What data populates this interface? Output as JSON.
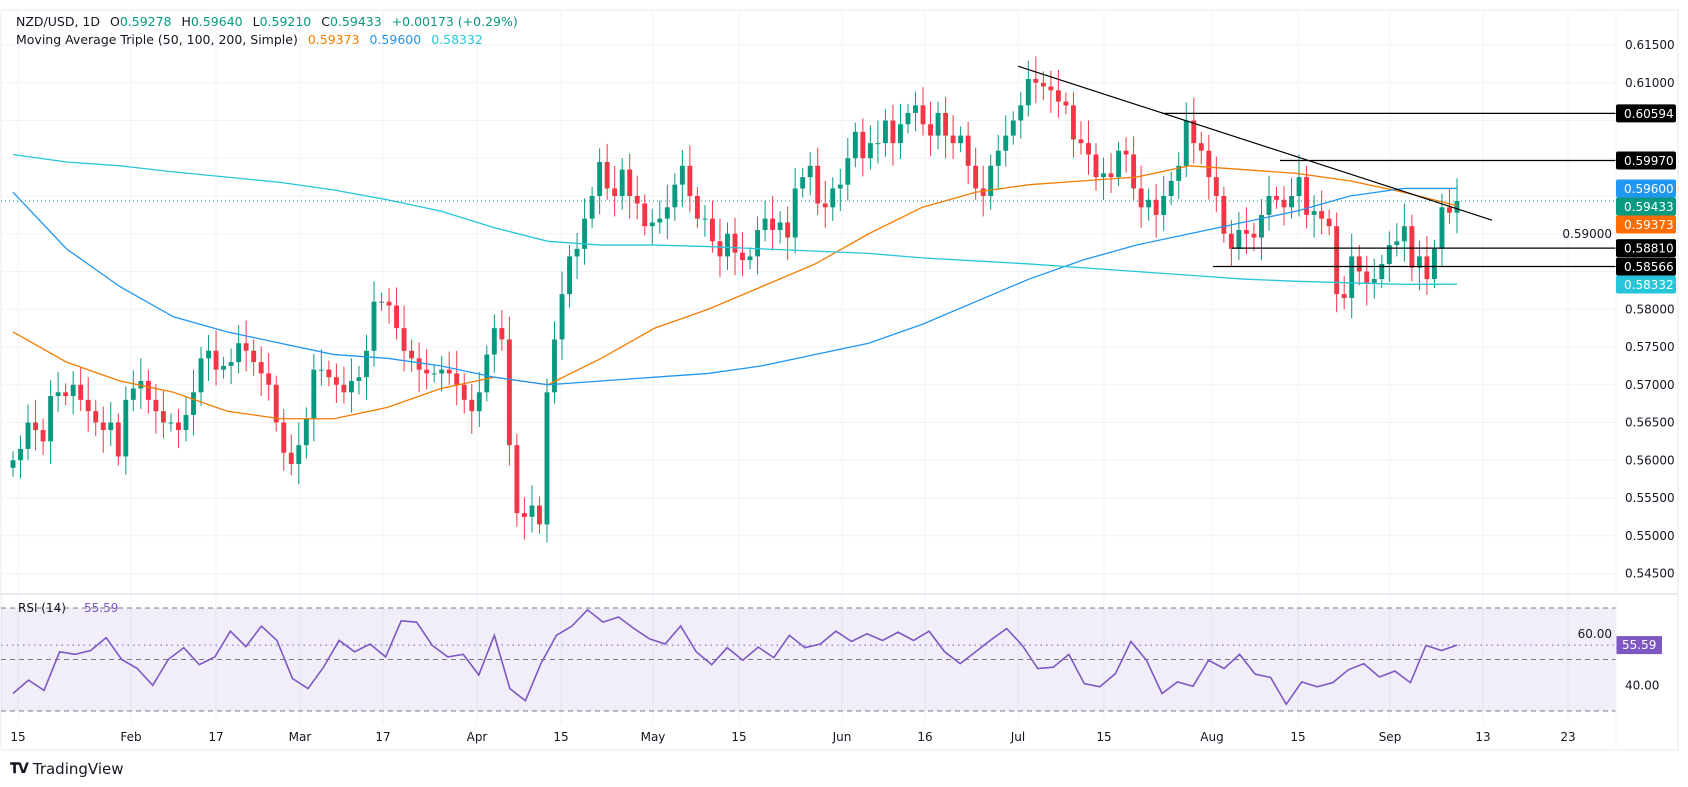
{
  "header": {
    "symbol": "NZD/USD, 1D",
    "open_label": "O",
    "open": "0.59278",
    "high_label": "H",
    "high": "0.59640",
    "low_label": "L",
    "low": "0.59210",
    "close_label": "C",
    "close": "0.59433",
    "change": "+0.00173 (+0.29%)",
    "ma_title": "Moving Average Triple (50, 100, 200, Simple)",
    "ma50": "0.59373",
    "ma100": "0.59600",
    "ma200": "0.58332"
  },
  "colors": {
    "up": "#089981",
    "down": "#F23645",
    "ma50": "#F57C00",
    "ma100": "#2196F3",
    "ma200": "#26C6DA",
    "rsi": "#7E57C2",
    "drawing": "#000000"
  },
  "chart_data": [
    {
      "type": "candlestick",
      "title": "NZD/USD, 1D",
      "ylim": [
        0.545,
        0.615
      ],
      "grid": true,
      "y_ticks": [
        "0.61500",
        "0.61000",
        "0.59000",
        "0.58000",
        "0.57500",
        "0.57000",
        "0.56500",
        "0.56000",
        "0.55500",
        "0.55000",
        "0.54500"
      ],
      "x_ticks": [
        "15",
        "Feb",
        "17",
        "Mar",
        "17",
        "Apr",
        "15",
        "May",
        "15",
        "Jun",
        "16",
        "Jul",
        "15",
        "Aug",
        "15",
        "Sep",
        "13",
        "23"
      ],
      "closes": [
        0.56,
        0.5615,
        0.565,
        0.564,
        0.5625,
        0.5685,
        0.569,
        0.5685,
        0.57,
        0.568,
        0.5665,
        0.565,
        0.564,
        0.565,
        0.5605,
        0.568,
        0.5695,
        0.5705,
        0.568,
        0.5665,
        0.565,
        0.565,
        0.564,
        0.566,
        0.569,
        0.5735,
        0.5745,
        0.572,
        0.5725,
        0.573,
        0.5755,
        0.5745,
        0.573,
        0.5715,
        0.57,
        0.565,
        0.561,
        0.5595,
        0.562,
        0.5655,
        0.572,
        0.572,
        0.571,
        0.57,
        0.569,
        0.5705,
        0.571,
        0.5745,
        0.581,
        0.581,
        0.5805,
        0.5775,
        0.5745,
        0.5735,
        0.572,
        0.5715,
        0.5715,
        0.572,
        0.5715,
        0.57,
        0.568,
        0.5665,
        0.569,
        0.574,
        0.5775,
        0.576,
        0.562,
        0.553,
        0.5525,
        0.554,
        0.5515,
        0.569,
        0.576,
        0.582,
        0.587,
        0.588,
        0.592,
        0.595,
        0.5995,
        0.596,
        0.595,
        0.5985,
        0.595,
        0.594,
        0.591,
        0.5915,
        0.592,
        0.5935,
        0.5965,
        0.599,
        0.595,
        0.592,
        0.592,
        0.589,
        0.587,
        0.59,
        0.5875,
        0.5865,
        0.587,
        0.5905,
        0.592,
        0.5905,
        0.5915,
        0.5895,
        0.596,
        0.5975,
        0.599,
        0.594,
        0.5935,
        0.596,
        0.5965,
        0.6,
        0.6035,
        0.6,
        0.602,
        0.602,
        0.605,
        0.602,
        0.6045,
        0.606,
        0.607,
        0.6045,
        0.603,
        0.606,
        0.603,
        0.602,
        0.603,
        0.599,
        0.596,
        0.595,
        0.599,
        0.601,
        0.603,
        0.605,
        0.607,
        0.6105,
        0.61,
        0.6095,
        0.609,
        0.6075,
        0.607,
        0.6025,
        0.602,
        0.6005,
        0.5975,
        0.598,
        0.5975,
        0.601,
        0.6005,
        0.596,
        0.5935,
        0.5945,
        0.5925,
        0.595,
        0.597,
        0.599,
        0.605,
        0.602,
        0.601,
        0.5975,
        0.595,
        0.59,
        0.588,
        0.5905,
        0.59,
        0.5895,
        0.5925,
        0.595,
        0.5945,
        0.5935,
        0.595,
        0.5975,
        0.5925,
        0.593,
        0.592,
        0.591,
        0.582,
        0.5815,
        0.587,
        0.585,
        0.5835,
        0.584,
        0.586,
        0.5885,
        0.589,
        0.591,
        0.5855,
        0.587,
        0.584,
        0.588,
        0.5935,
        0.59278,
        0.59433
      ],
      "moving_averages": [
        {
          "name": "MA 50",
          "values": [
            0.577,
            0.573,
            0.5705,
            0.569,
            0.5665,
            0.5655,
            0.5655,
            0.567,
            0.5695,
            0.571,
            0.57,
            0.5735,
            0.5775,
            0.58,
            0.583,
            0.586,
            0.59,
            0.5935,
            0.5955,
            0.5965,
            0.597,
            0.5975,
            0.599,
            0.5985,
            0.598,
            0.597,
            0.5955,
            0.59373
          ]
        },
        {
          "name": "MA 100",
          "values": [
            0.5955,
            0.588,
            0.583,
            0.579,
            0.577,
            0.5755,
            0.574,
            0.5735,
            0.5725,
            0.571,
            0.57,
            0.5705,
            0.571,
            0.5715,
            0.5725,
            0.574,
            0.5755,
            0.578,
            0.581,
            0.584,
            0.5865,
            0.5885,
            0.59,
            0.5915,
            0.593,
            0.595,
            0.596,
            0.596
          ]
        },
        {
          "name": "MA 200",
          "values": [
            0.6005,
            0.5995,
            0.599,
            0.5982,
            0.5975,
            0.5968,
            0.5958,
            0.5945,
            0.593,
            0.5908,
            0.589,
            0.5885,
            0.5885,
            0.5883,
            0.588,
            0.5877,
            0.5874,
            0.5868,
            0.5864,
            0.586,
            0.5855,
            0.585,
            0.5845,
            0.584,
            0.5837,
            0.5835,
            0.5833,
            0.58332
          ]
        }
      ],
      "trendline": {
        "from_price": 0.6122,
        "to_price": 0.5918
      },
      "horizontal_levels": [
        "0.60594",
        "0.59970",
        "0.58810",
        "0.58566"
      ],
      "price_tags": [
        {
          "label": "0.60594",
          "value": 0.60594,
          "color": "#000000"
        },
        {
          "label": "0.59970",
          "value": 0.5997,
          "color": "#000000"
        },
        {
          "label": "0.59600",
          "value": 0.596,
          "color": "#2196F3"
        },
        {
          "label": "0.59433",
          "value": 0.59433,
          "color": "#089981"
        },
        {
          "label": "0.59373",
          "value": 0.59373,
          "color": "#FF6D00"
        },
        {
          "label": "0.58810",
          "value": 0.5881,
          "color": "#000000"
        },
        {
          "label": "0.58566",
          "value": 0.58566,
          "color": "#000000"
        },
        {
          "label": "0.58332",
          "value": 0.58332,
          "color": "#26C6DA"
        }
      ]
    },
    {
      "type": "line",
      "title": "RSI (14)",
      "current": "55.59",
      "ylim": [
        30,
        70
      ],
      "bands": [
        70,
        50,
        30
      ],
      "y_ticks": [
        "60.00",
        "40.00"
      ],
      "values": [
        36.8,
        42,
        38,
        53,
        52,
        53.5,
        58.5,
        50,
        46.5,
        40,
        50,
        54.6,
        48,
        51,
        61,
        55,
        63,
        57.4,
        42.6,
        38.7,
        47,
        57.4,
        53,
        56,
        51,
        65,
        64.5,
        55.5,
        51,
        52,
        44,
        59.4,
        38.7,
        34,
        48.4,
        59.4,
        63,
        69.3,
        64.5,
        66.5,
        62,
        58,
        56,
        63,
        53,
        48,
        54.6,
        49.7,
        54.8,
        50.7,
        59.4,
        54.6,
        56,
        61,
        57,
        60,
        57.4,
        60.6,
        57.4,
        61,
        53,
        48.4,
        53,
        57.7,
        62,
        55.5,
        46.5,
        47,
        52,
        40.6,
        39.4,
        44.5,
        57,
        49.7,
        36.8,
        41.3,
        39.6,
        49.7,
        46.5,
        52,
        44.3,
        43,
        32.6,
        41.3,
        39.4,
        41,
        46,
        48.4,
        43.2,
        45.5,
        41,
        55.5,
        53.5,
        55.59
      ]
    }
  ],
  "footer": {
    "brand": "TradingView"
  }
}
